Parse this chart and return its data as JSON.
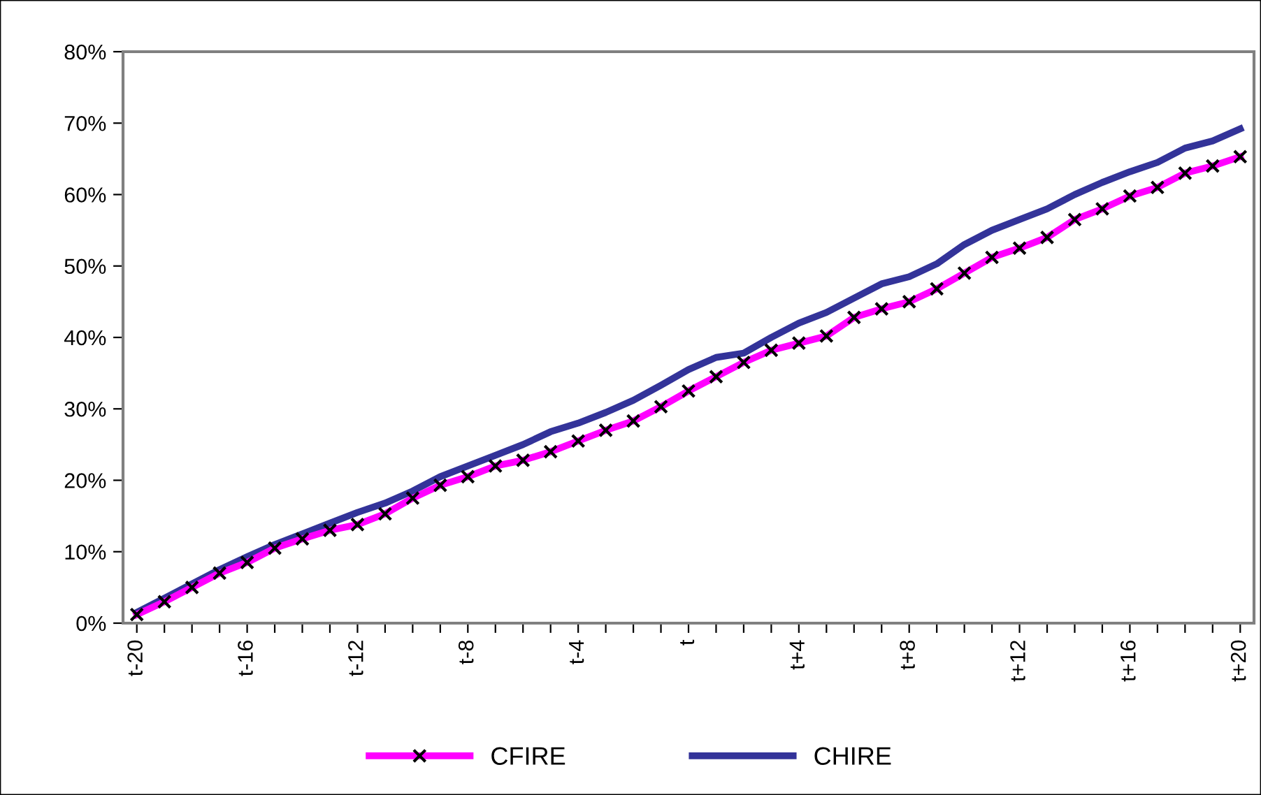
{
  "chart_data": {
    "type": "line",
    "categories": [
      "t-20",
      null,
      null,
      null,
      "t-16",
      null,
      null,
      null,
      "t-12",
      null,
      null,
      null,
      "t-8",
      null,
      null,
      null,
      "t-4",
      null,
      null,
      null,
      "t",
      null,
      null,
      null,
      "t+4",
      null,
      null,
      null,
      "t+8",
      null,
      null,
      null,
      "t+12",
      null,
      null,
      null,
      "t+16",
      null,
      null,
      null,
      "t+20"
    ],
    "series": [
      {
        "name": "CFIRE",
        "color": "#ff00ff",
        "marker": "cross",
        "values": [
          1.2,
          3.0,
          5.0,
          7.0,
          8.5,
          10.5,
          11.8,
          13.0,
          13.8,
          15.3,
          17.5,
          19.3,
          20.5,
          22.0,
          22.8,
          24.0,
          25.5,
          27.0,
          28.3,
          30.3,
          32.5,
          34.5,
          36.5,
          38.2,
          39.2,
          40.2,
          42.8,
          44.0,
          45.0,
          46.8,
          49.0,
          51.2,
          52.5,
          54.0,
          56.5,
          58.0,
          59.8,
          61.0,
          63.0,
          64.0,
          65.3
        ]
      },
      {
        "name": "CHIRE",
        "color": "#333399",
        "marker": "none",
        "values": [
          1.5,
          3.5,
          5.5,
          7.5,
          9.3,
          11.0,
          12.5,
          14.0,
          15.5,
          16.8,
          18.5,
          20.5,
          22.0,
          23.5,
          25.0,
          26.8,
          28.0,
          29.5,
          31.2,
          33.3,
          35.5,
          37.2,
          37.8,
          40.0,
          42.0,
          43.5,
          45.5,
          47.5,
          48.5,
          50.3,
          53.0,
          55.0,
          56.5,
          58.0,
          60.0,
          61.7,
          63.2,
          64.5,
          66.5,
          67.5,
          69.2
        ]
      }
    ],
    "ylim": [
      0,
      80
    ],
    "yticks": [
      {
        "value": 0,
        "label": "0%"
      },
      {
        "value": 10,
        "label": "10%"
      },
      {
        "value": 20,
        "label": "20%"
      },
      {
        "value": 30,
        "label": "30%"
      },
      {
        "value": 40,
        "label": "40%"
      },
      {
        "value": 50,
        "label": "50%"
      },
      {
        "value": 60,
        "label": "60%"
      },
      {
        "value": 70,
        "label": "70%"
      },
      {
        "value": 80,
        "label": "80%"
      }
    ],
    "grid": false,
    "legend": "bottom",
    "line_style": "solid"
  }
}
